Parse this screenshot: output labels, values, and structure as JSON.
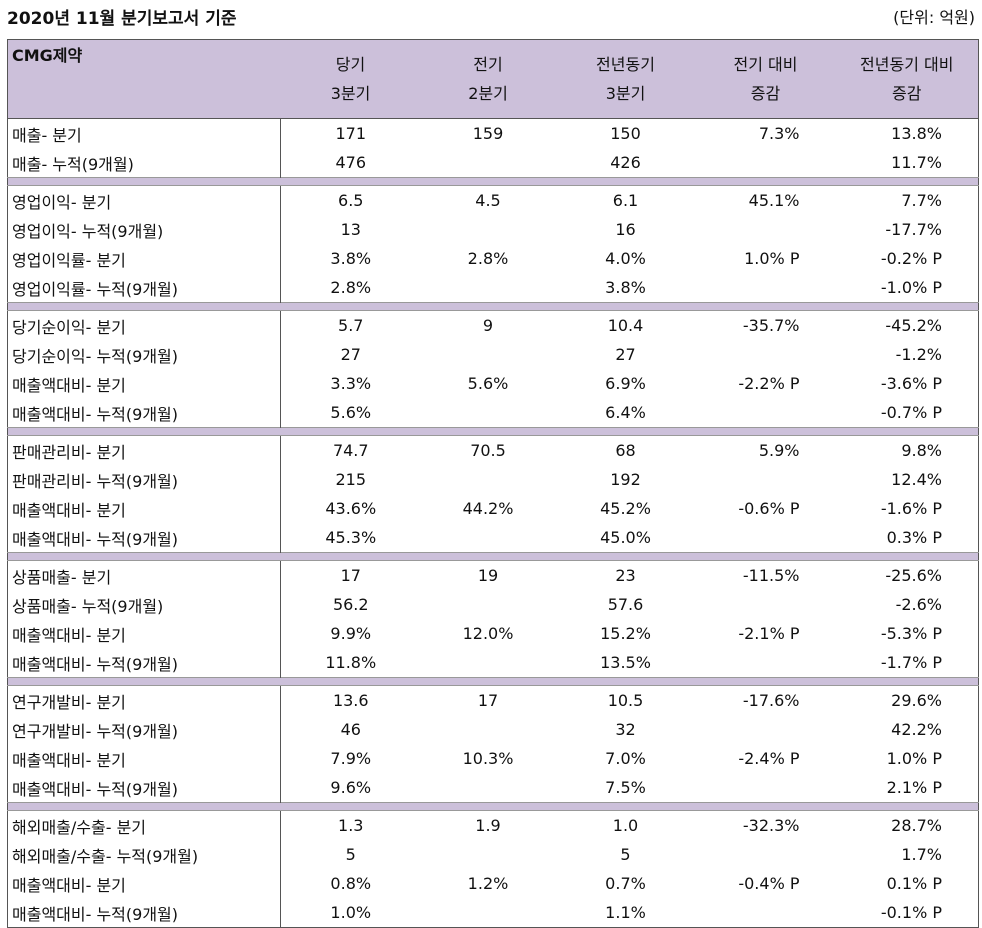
{
  "header": {
    "title": "2020년 11월 분기보고서 기준",
    "unit": "(단위: 억원)"
  },
  "columns": {
    "company": "CMG제약",
    "c1": [
      "당기",
      "3분기"
    ],
    "c2": [
      "전기",
      "2분기"
    ],
    "c3": [
      "전년동기",
      "3분기"
    ],
    "c4": [
      "전기 대비",
      "증감"
    ],
    "c5": [
      "전년동기 대비",
      "증감"
    ]
  },
  "sections": [
    {
      "rows": [
        {
          "label": "매출- 분기",
          "cur": "171",
          "prev": "159",
          "yoy": "150",
          "vs_prev": "7.3%",
          "vs_yoy": "13.8%"
        },
        {
          "label": "매출- 누적(9개월)",
          "cur": "476",
          "prev": "",
          "yoy": "426",
          "vs_prev": "",
          "vs_yoy": "11.7%"
        }
      ]
    },
    {
      "rows": [
        {
          "label": "영업이익- 분기",
          "cur": "6.5",
          "prev": "4.5",
          "yoy": "6.1",
          "vs_prev": "45.1%",
          "vs_yoy": "7.7%"
        },
        {
          "label": "영업이익- 누적(9개월)",
          "cur": "13",
          "prev": "",
          "yoy": "16",
          "vs_prev": "",
          "vs_yoy": "-17.7%"
        },
        {
          "label": "영업이익률- 분기",
          "cur": "3.8%",
          "prev": "2.8%",
          "yoy": "4.0%",
          "vs_prev": "1.0% P",
          "vs_yoy": "-0.2% P"
        },
        {
          "label": "영업이익률- 누적(9개월)",
          "cur": "2.8%",
          "prev": "",
          "yoy": "3.8%",
          "vs_prev": "",
          "vs_yoy": "-1.0% P"
        }
      ]
    },
    {
      "rows": [
        {
          "label": "당기순이익- 분기",
          "cur": "5.7",
          "prev": "9",
          "yoy": "10.4",
          "vs_prev": "-35.7%",
          "vs_yoy": "-45.2%"
        },
        {
          "label": "당기순이익- 누적(9개월)",
          "cur": "27",
          "prev": "",
          "yoy": "27",
          "vs_prev": "",
          "vs_yoy": "-1.2%"
        },
        {
          "label": "매출액대비- 분기",
          "cur": "3.3%",
          "prev": "5.6%",
          "yoy": "6.9%",
          "vs_prev": "-2.2% P",
          "vs_yoy": "-3.6% P"
        },
        {
          "label": "매출액대비- 누적(9개월)",
          "cur": "5.6%",
          "prev": "",
          "yoy": "6.4%",
          "vs_prev": "",
          "vs_yoy": "-0.7% P"
        }
      ]
    },
    {
      "rows": [
        {
          "label": "판매관리비- 분기",
          "cur": "74.7",
          "prev": "70.5",
          "yoy": "68",
          "vs_prev": "5.9%",
          "vs_yoy": "9.8%"
        },
        {
          "label": "판매관리비- 누적(9개월)",
          "cur": "215",
          "prev": "",
          "yoy": "192",
          "vs_prev": "",
          "vs_yoy": "12.4%"
        },
        {
          "label": "매출액대비- 분기",
          "cur": "43.6%",
          "prev": "44.2%",
          "yoy": "45.2%",
          "vs_prev": "-0.6% P",
          "vs_yoy": "-1.6% P"
        },
        {
          "label": "매출액대비- 누적(9개월)",
          "cur": "45.3%",
          "prev": "",
          "yoy": "45.0%",
          "vs_prev": "",
          "vs_yoy": "0.3% P"
        }
      ]
    },
    {
      "rows": [
        {
          "label": "상품매출- 분기",
          "cur": "17",
          "prev": "19",
          "yoy": "23",
          "vs_prev": "-11.5%",
          "vs_yoy": "-25.6%"
        },
        {
          "label": "상품매출- 누적(9개월)",
          "cur": "56.2",
          "prev": "",
          "yoy": "57.6",
          "vs_prev": "",
          "vs_yoy": "-2.6%"
        },
        {
          "label": "매출액대비- 분기",
          "cur": "9.9%",
          "prev": "12.0%",
          "yoy": "15.2%",
          "vs_prev": "-2.1% P",
          "vs_yoy": "-5.3% P"
        },
        {
          "label": "매출액대비- 누적(9개월)",
          "cur": "11.8%",
          "prev": "",
          "yoy": "13.5%",
          "vs_prev": "",
          "vs_yoy": "-1.7% P"
        }
      ]
    },
    {
      "rows": [
        {
          "label": "연구개발비- 분기",
          "cur": "13.6",
          "prev": "17",
          "yoy": "10.5",
          "vs_prev": "-17.6%",
          "vs_yoy": "29.6%"
        },
        {
          "label": "연구개발비- 누적(9개월)",
          "cur": "46",
          "prev": "",
          "yoy": "32",
          "vs_prev": "",
          "vs_yoy": "42.2%"
        },
        {
          "label": "매출액대비- 분기",
          "cur": "7.9%",
          "prev": "10.3%",
          "yoy": "7.0%",
          "vs_prev": "-2.4% P",
          "vs_yoy": "1.0% P"
        },
        {
          "label": "매출액대비- 누적(9개월)",
          "cur": "9.6%",
          "prev": "",
          "yoy": "7.5%",
          "vs_prev": "",
          "vs_yoy": "2.1% P"
        }
      ]
    },
    {
      "rows": [
        {
          "label": "해외매출/수출- 분기",
          "cur": "1.3",
          "prev": "1.9",
          "yoy": "1.0",
          "vs_prev": "-32.3%",
          "vs_yoy": "28.7%"
        },
        {
          "label": "해외매출/수출- 누적(9개월)",
          "cur": "5",
          "prev": "",
          "yoy": "5",
          "vs_prev": "",
          "vs_yoy": "1.7%"
        },
        {
          "label": "매출액대비- 분기",
          "cur": "0.8%",
          "prev": "1.2%",
          "yoy": "0.7%",
          "vs_prev": "-0.4% P",
          "vs_yoy": "0.1% P"
        },
        {
          "label": "매출액대비- 누적(9개월)",
          "cur": "1.0%",
          "prev": "",
          "yoy": "1.1%",
          "vs_prev": "",
          "vs_yoy": "-0.1% P"
        }
      ]
    }
  ]
}
